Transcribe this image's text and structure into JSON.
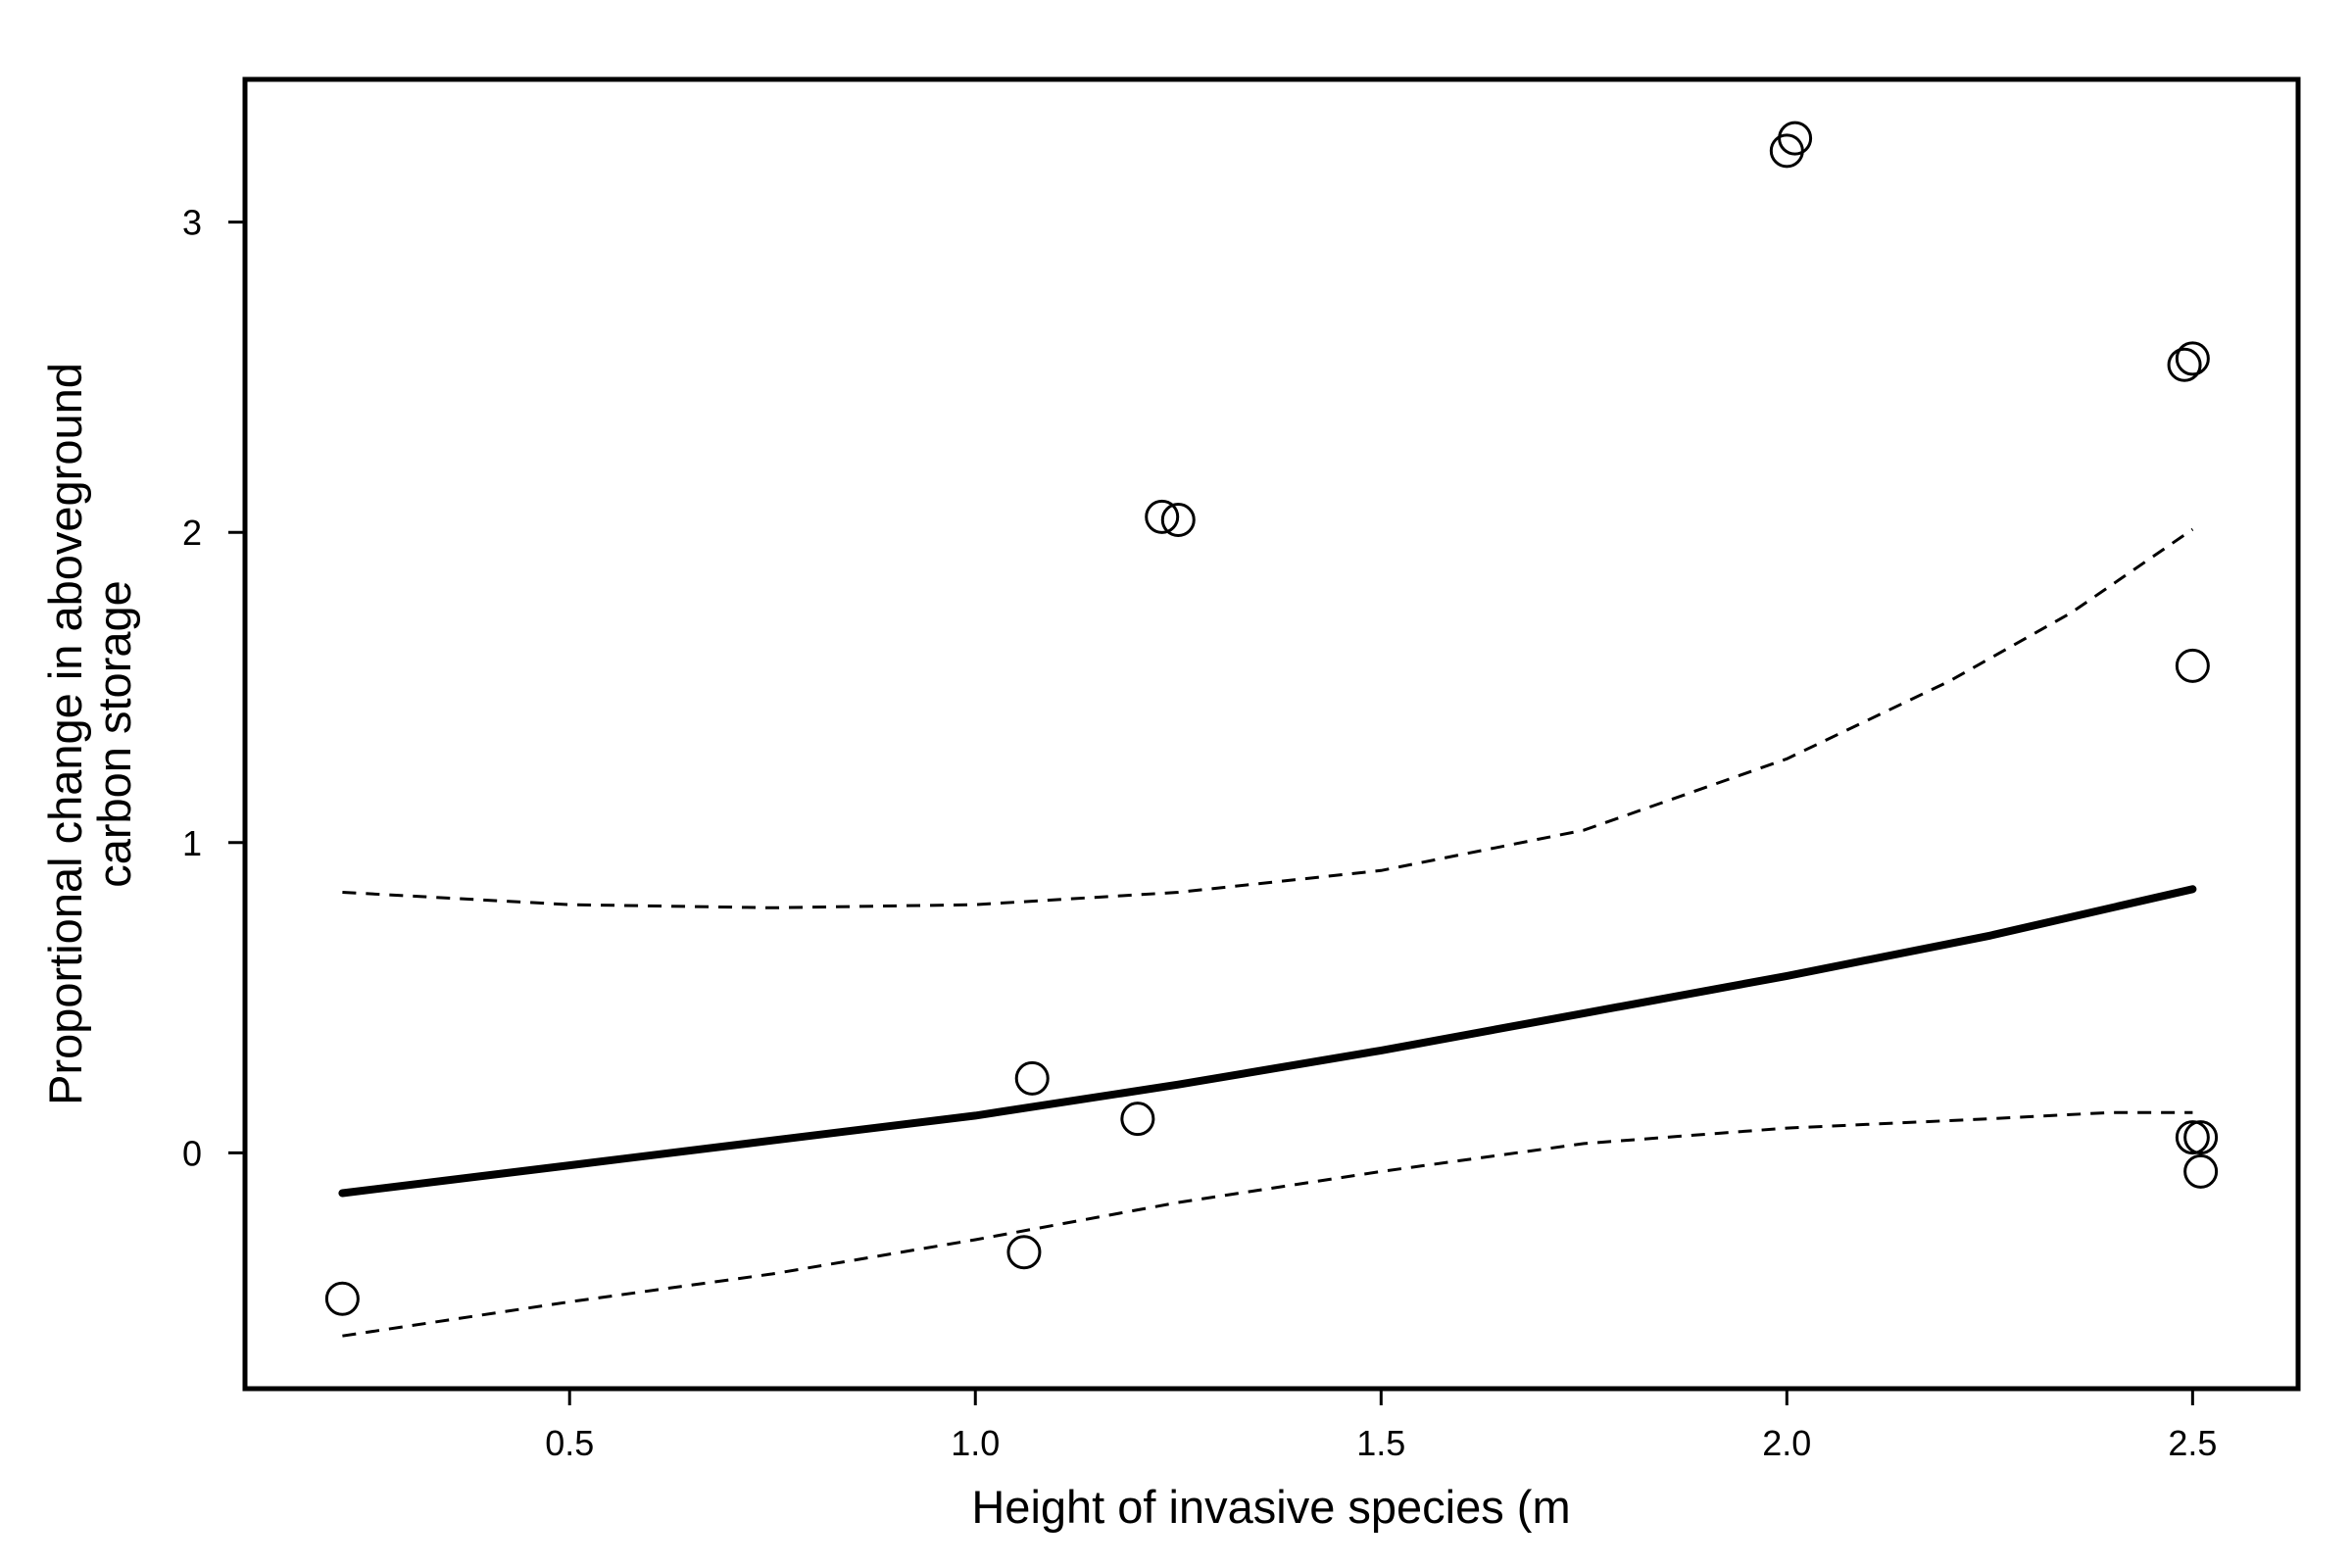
{
  "chart_data": {
    "type": "scatter",
    "title": "",
    "xlabel": "Height of invasive species (m",
    "ylabel_lines": [
      "Proportional change in aboveground",
      "carbon storage"
    ],
    "xlim": [
      0.1,
      2.63
    ],
    "ylim": [
      -0.76,
      3.46
    ],
    "x_ticks": [
      {
        "value": 0.5,
        "label": "0.5"
      },
      {
        "value": 1.0,
        "label": "1.0"
      },
      {
        "value": 1.5,
        "label": "1.5"
      },
      {
        "value": 2.0,
        "label": "2.0"
      },
      {
        "value": 2.5,
        "label": "2.5"
      }
    ],
    "y_ticks": [
      {
        "value": 0,
        "label": "0"
      },
      {
        "value": 1,
        "label": "1"
      },
      {
        "value": 2,
        "label": "2"
      },
      {
        "value": 3,
        "label": "3"
      }
    ],
    "grid": false,
    "points": [
      {
        "x": 0.22,
        "y": -0.47
      },
      {
        "x": 1.06,
        "y": -0.32
      },
      {
        "x": 1.07,
        "y": 0.24
      },
      {
        "x": 1.2,
        "y": 0.11
      },
      {
        "x": 1.23,
        "y": 2.05
      },
      {
        "x": 1.25,
        "y": 2.04
      },
      {
        "x": 2.0,
        "y": 3.23
      },
      {
        "x": 2.01,
        "y": 3.27
      },
      {
        "x": 2.49,
        "y": 2.54
      },
      {
        "x": 2.5,
        "y": 2.56
      },
      {
        "x": 2.5,
        "y": 1.57
      },
      {
        "x": 2.5,
        "y": 0.05
      },
      {
        "x": 2.51,
        "y": 0.05
      },
      {
        "x": 2.51,
        "y": -0.06
      }
    ],
    "fit_line": {
      "style": "solid",
      "x": [
        0.22,
        0.5,
        0.75,
        1.0,
        1.25,
        1.5,
        1.75,
        2.0,
        2.25,
        2.5
      ],
      "y": [
        -0.13,
        -0.04,
        0.04,
        0.12,
        0.22,
        0.33,
        0.45,
        0.57,
        0.7,
        0.85
      ]
    },
    "ci_upper": {
      "style": "dashed",
      "x": [
        0.22,
        0.5,
        0.75,
        1.0,
        1.25,
        1.5,
        1.75,
        2.0,
        2.2,
        2.35,
        2.5
      ],
      "y": [
        0.84,
        0.8,
        0.79,
        0.8,
        0.84,
        0.91,
        1.04,
        1.27,
        1.52,
        1.74,
        2.01
      ]
    },
    "ci_lower": {
      "style": "dashed",
      "x": [
        0.22,
        0.5,
        0.75,
        1.0,
        1.25,
        1.5,
        1.75,
        2.0,
        2.25,
        2.4,
        2.5
      ],
      "y": [
        -0.59,
        -0.48,
        -0.39,
        -0.28,
        -0.16,
        -0.06,
        0.03,
        0.08,
        0.11,
        0.13,
        0.13
      ]
    }
  }
}
